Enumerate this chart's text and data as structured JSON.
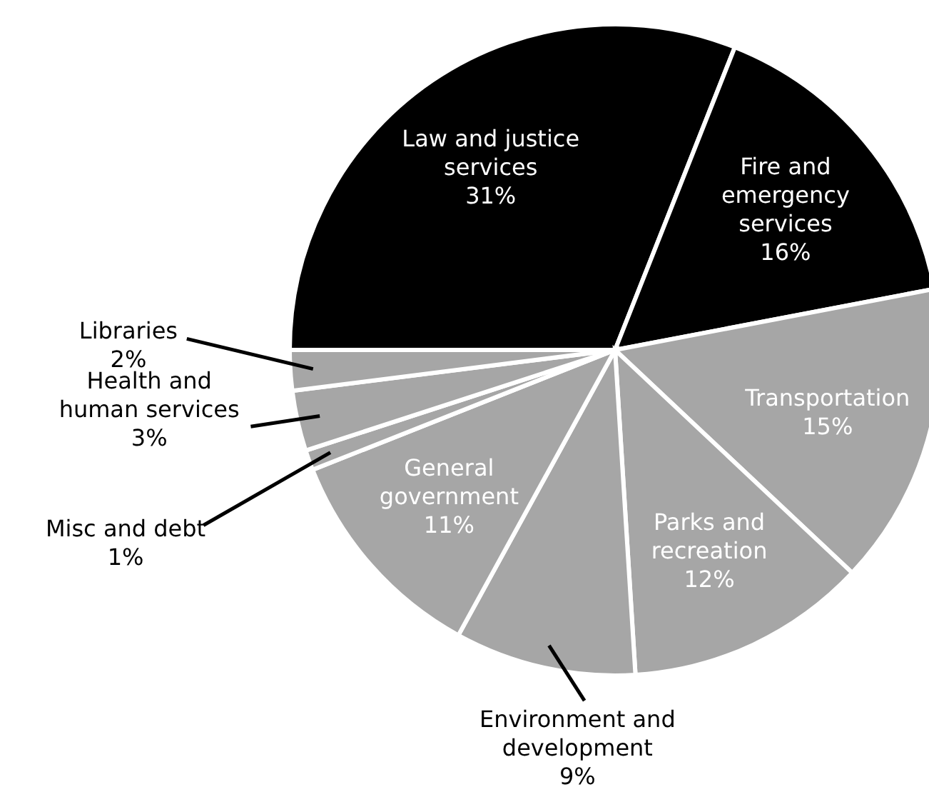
{
  "chart_data": {
    "type": "pie",
    "categories": [
      "Law and justice services",
      "Fire and emergency services",
      "Transportation",
      "Parks and recreation",
      "Environment and development",
      "General government",
      "Misc and debt",
      "Health and human services",
      "Libraries"
    ],
    "values": [
      31,
      16,
      15,
      12,
      9,
      11,
      1,
      3,
      2
    ],
    "value_labels": [
      "31%",
      "16%",
      "15%",
      "12%",
      "9%",
      "11%",
      "1%",
      "3%",
      "2%"
    ],
    "colors": [
      "#000000",
      "#000000",
      "#a6a6a6",
      "#a6a6a6",
      "#a6a6a6",
      "#a6a6a6",
      "#a6a6a6",
      "#a6a6a6",
      "#a6a6a6"
    ]
  }
}
